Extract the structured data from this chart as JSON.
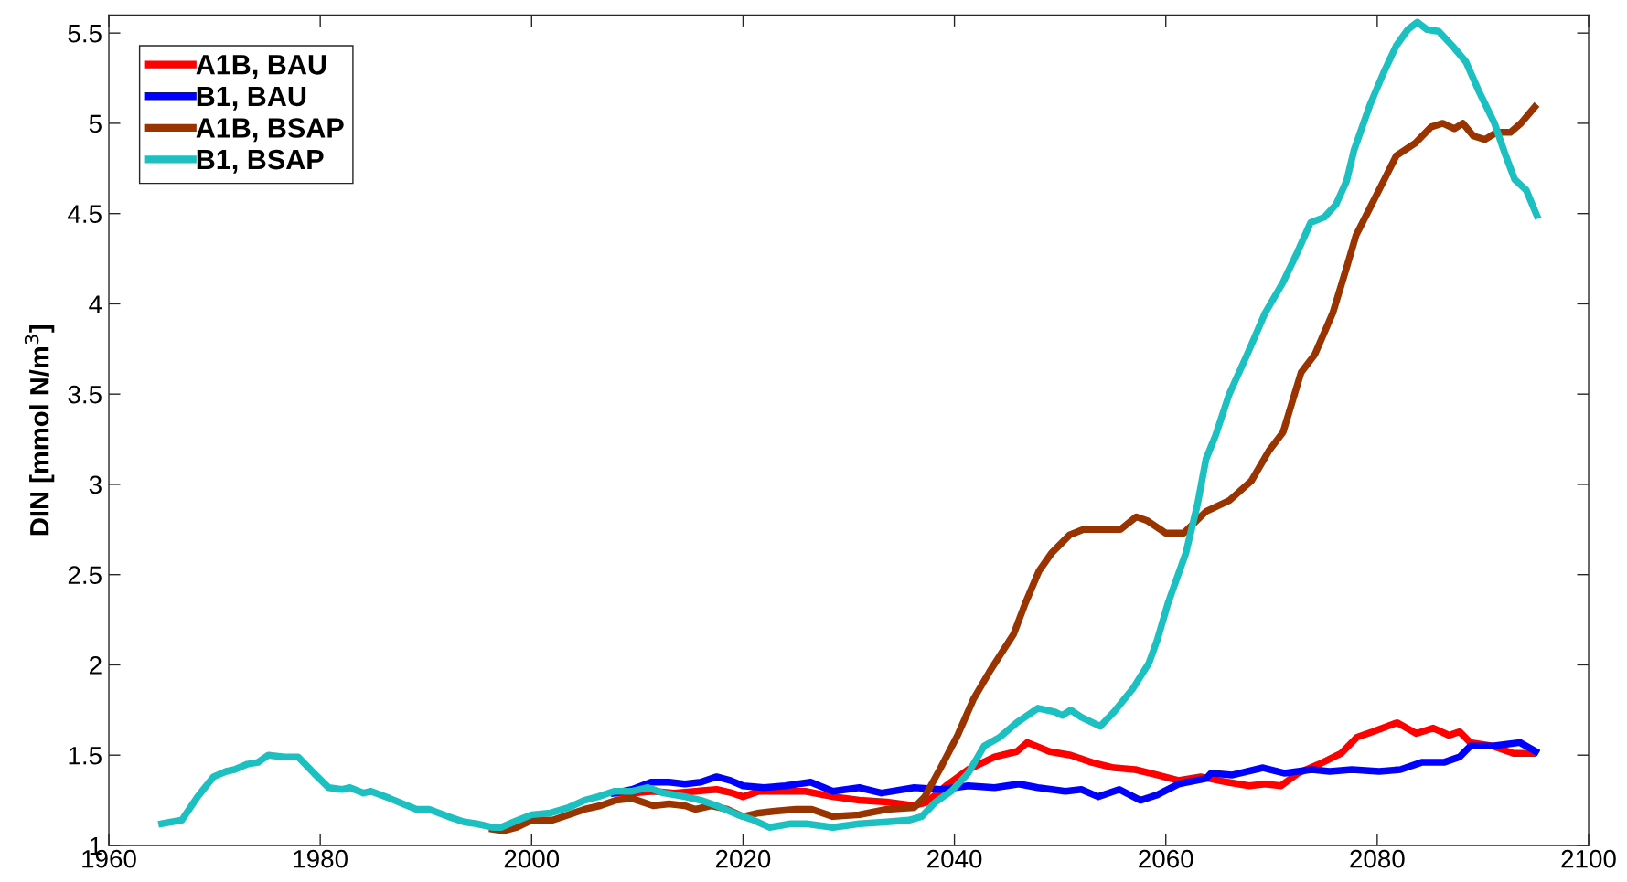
{
  "chart_data": {
    "type": "line",
    "ylabel": "DIN [mmol N/m$^{3}$]",
    "xlim": [
      1960,
      2100
    ],
    "xticks": [
      1960,
      1980,
      2000,
      2020,
      2040,
      2060,
      2080,
      2100
    ],
    "ylim": [
      1,
      5.6
    ],
    "yticks": [
      1,
      1.5,
      2,
      2.5,
      3,
      3.5,
      4,
      4.5,
      5,
      5.5
    ],
    "grid": false,
    "legend": "top left",
    "line_style": "solid",
    "series": [
      {
        "name": "A1B, BAU",
        "color": "#ff0000",
        "x": [
          2007.8,
          2009.5,
          2011.5,
          2013.5,
          2015.5,
          2017.5,
          2019.0,
          2020.0,
          2021.5,
          2023.5,
          2025.9,
          2028.5,
          2031.0,
          2033.6,
          2036.2,
          2037.4,
          2039.2,
          2041.3,
          2043.8,
          2045.9,
          2046.9,
          2049.0,
          2051.0,
          2053.0,
          2055.1,
          2057.1,
          2059.2,
          2061.2,
          2063.3,
          2065.8,
          2067.9,
          2069.4,
          2070.9,
          2072.5,
          2074.5,
          2076.6,
          2078.1,
          2079.6,
          2081.9,
          2083.7,
          2085.3,
          2086.8,
          2087.8,
          2088.8,
          2090.9,
          2092.9,
          2094.7
        ],
        "values": [
          1.29,
          1.29,
          1.3,
          1.29,
          1.3,
          1.31,
          1.29,
          1.27,
          1.3,
          1.3,
          1.3,
          1.27,
          1.25,
          1.24,
          1.22,
          1.24,
          1.33,
          1.42,
          1.49,
          1.52,
          1.57,
          1.52,
          1.5,
          1.46,
          1.43,
          1.42,
          1.39,
          1.36,
          1.38,
          1.35,
          1.33,
          1.34,
          1.33,
          1.4,
          1.45,
          1.51,
          1.6,
          1.63,
          1.68,
          1.62,
          1.65,
          1.61,
          1.63,
          1.57,
          1.55,
          1.51,
          1.51
        ]
      },
      {
        "name": "B1, BAU",
        "color": "#0000ff",
        "x": [
          2007.8,
          2009.5,
          2011.3,
          2013.0,
          2014.5,
          2016.0,
          2017.5,
          2018.8,
          2020.0,
          2022.0,
          2024.0,
          2026.4,
          2028.5,
          2031.0,
          2033.1,
          2036.2,
          2038.7,
          2041.3,
          2043.8,
          2046.1,
          2047.9,
          2050.5,
          2052.0,
          2053.6,
          2055.6,
          2057.6,
          2059.2,
          2061.2,
          2063.8,
          2064.3,
          2066.3,
          2069.2,
          2071.2,
          2073.8,
          2075.5,
          2077.6,
          2080.2,
          2082.2,
          2084.2,
          2086.3,
          2087.8,
          2088.8,
          2090.9,
          2093.5,
          2095.0
        ],
        "values": [
          1.29,
          1.31,
          1.35,
          1.35,
          1.34,
          1.35,
          1.38,
          1.36,
          1.33,
          1.32,
          1.33,
          1.35,
          1.3,
          1.32,
          1.29,
          1.32,
          1.31,
          1.33,
          1.32,
          1.34,
          1.32,
          1.3,
          1.31,
          1.27,
          1.31,
          1.25,
          1.28,
          1.34,
          1.37,
          1.4,
          1.39,
          1.43,
          1.4,
          1.42,
          1.41,
          1.42,
          1.41,
          1.42,
          1.46,
          1.46,
          1.49,
          1.55,
          1.55,
          1.57,
          1.52
        ]
      },
      {
        "name": "A1B, BSAP",
        "color": "#993300",
        "x": [
          1996.3,
          1997.3,
          1998.6,
          2000.0,
          2002.0,
          2003.5,
          2005.0,
          2006.5,
          2008.0,
          2009.5,
          2011.5,
          2013.0,
          2014.5,
          2015.5,
          2017.0,
          2018.5,
          2020.0,
          2021.5,
          2023.0,
          2025.0,
          2026.5,
          2028.5,
          2031.0,
          2033.6,
          2036.2,
          2037.2,
          2038.7,
          2040.3,
          2041.8,
          2043.3,
          2044.6,
          2045.6,
          2046.7,
          2048.0,
          2049.2,
          2050.9,
          2052.2,
          2054.0,
          2055.7,
          2057.2,
          2058.2,
          2060.0,
          2061.7,
          2063.8,
          2066.0,
          2068.1,
          2069.8,
          2071.1,
          2072.8,
          2074.1,
          2075.8,
          2077.1,
          2078.0,
          2079.3,
          2080.6,
          2081.8,
          2083.6,
          2085.1,
          2086.2,
          2087.3,
          2088.1,
          2089.1,
          2090.2,
          2091.3,
          2092.6,
          2093.6,
          2094.9
        ],
        "values": [
          1.09,
          1.08,
          1.1,
          1.14,
          1.14,
          1.17,
          1.2,
          1.22,
          1.25,
          1.26,
          1.22,
          1.23,
          1.22,
          1.2,
          1.22,
          1.2,
          1.16,
          1.18,
          1.19,
          1.2,
          1.2,
          1.16,
          1.17,
          1.2,
          1.21,
          1.27,
          1.43,
          1.61,
          1.81,
          1.96,
          2.08,
          2.17,
          2.34,
          2.52,
          2.62,
          2.72,
          2.75,
          2.75,
          2.75,
          2.82,
          2.8,
          2.73,
          2.73,
          2.85,
          2.91,
          3.02,
          3.19,
          3.29,
          3.62,
          3.72,
          3.95,
          4.2,
          4.38,
          4.53,
          4.68,
          4.82,
          4.89,
          4.98,
          5.0,
          4.97,
          5.0,
          4.93,
          4.91,
          4.95,
          4.95,
          5.0,
          5.09
        ]
      },
      {
        "name": "B1, BSAP",
        "color": "#1cc0c0",
        "x": [
          1965.0,
          1966.9,
          1968.4,
          1969.9,
          1971.1,
          1971.9,
          1973.1,
          1974.1,
          1975.1,
          1976.6,
          1977.9,
          1979.4,
          1980.8,
          1982.1,
          1982.8,
          1984.1,
          1984.8,
          1986.6,
          1989.1,
          1990.3,
          1992.1,
          1993.6,
          1994.8,
          1996.3,
          1997.1,
          1998.3,
          2000.0,
          2001.8,
          2003.5,
          2005.0,
          2006.3,
          2007.8,
          2009.5,
          2011.0,
          2012.5,
          2014.5,
          2016.0,
          2017.5,
          2019.5,
          2021.0,
          2022.5,
          2024.5,
          2026.0,
          2028.5,
          2031.0,
          2033.6,
          2035.7,
          2036.9,
          2038.2,
          2039.7,
          2041.3,
          2042.8,
          2044.3,
          2045.9,
          2047.9,
          2049.5,
          2050.2,
          2051.0,
          2052.0,
          2053.8,
          2055.1,
          2056.9,
          2058.4,
          2059.2,
          2060.2,
          2061.9,
          2063.0,
          2063.8,
          2064.7,
          2066.0,
          2067.7,
          2069.4,
          2071.1,
          2072.4,
          2073.7,
          2075.0,
          2076.1,
          2077.1,
          2077.8,
          2079.3,
          2080.6,
          2081.8,
          2082.9,
          2083.8,
          2084.7,
          2085.8,
          2087.1,
          2088.4,
          2089.6,
          2091.1,
          2092.1,
          2093.0,
          2094.1,
          2095.1
        ],
        "values": [
          1.12,
          1.14,
          1.27,
          1.38,
          1.41,
          1.42,
          1.45,
          1.46,
          1.5,
          1.49,
          1.49,
          1.4,
          1.32,
          1.31,
          1.32,
          1.29,
          1.3,
          1.26,
          1.2,
          1.2,
          1.16,
          1.13,
          1.12,
          1.1,
          1.1,
          1.13,
          1.17,
          1.18,
          1.21,
          1.25,
          1.27,
          1.3,
          1.3,
          1.32,
          1.29,
          1.27,
          1.25,
          1.22,
          1.17,
          1.14,
          1.1,
          1.12,
          1.12,
          1.1,
          1.12,
          1.13,
          1.14,
          1.16,
          1.24,
          1.3,
          1.4,
          1.55,
          1.6,
          1.68,
          1.76,
          1.74,
          1.72,
          1.75,
          1.71,
          1.66,
          1.74,
          1.87,
          2.01,
          2.14,
          2.34,
          2.62,
          2.89,
          3.14,
          3.27,
          3.5,
          3.72,
          3.95,
          4.12,
          4.28,
          4.45,
          4.48,
          4.55,
          4.68,
          4.85,
          5.1,
          5.28,
          5.43,
          5.52,
          5.56,
          5.52,
          5.51,
          5.43,
          5.34,
          5.18,
          5.0,
          4.83,
          4.69,
          4.63,
          4.49
        ]
      }
    ]
  }
}
